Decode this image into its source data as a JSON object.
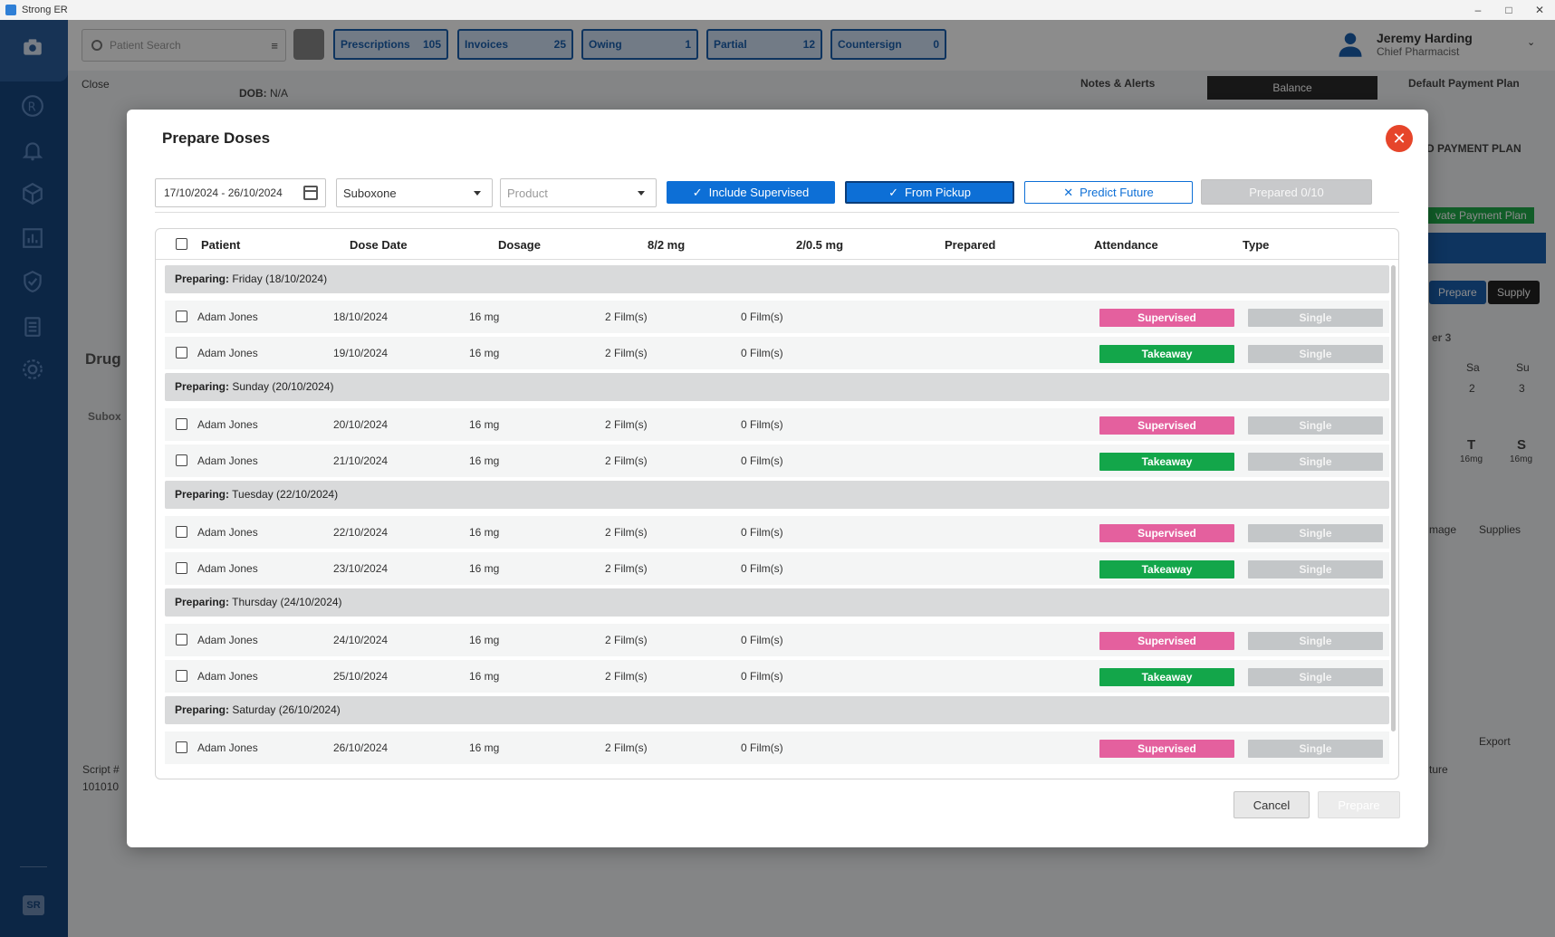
{
  "window": {
    "title": "Strong ER"
  },
  "header": {
    "search_placeholder": "Patient Search",
    "counters": [
      {
        "label": "Prescriptions",
        "count": "105"
      },
      {
        "label": "Invoices",
        "count": "25"
      },
      {
        "label": "Owing",
        "count": "1"
      },
      {
        "label": "Partial",
        "count": "12"
      },
      {
        "label": "Countersign",
        "count": "0"
      }
    ],
    "user": {
      "name": "Jeremy Harding",
      "role": "Chief Pharmacist"
    }
  },
  "background": {
    "close_label": "Close",
    "dob_label": "DOB:",
    "dob_value": "N/A",
    "notes_alerts": "Notes & Alerts",
    "balance": "Balance",
    "default_payment_plan": "Default Payment Plan",
    "payment_plan_fragment": "D PAYMENT PLAN",
    "private_payment_plan_fragment": "vate Payment Plan",
    "drug_fragment": "Drug",
    "subox_fragment": "Subox",
    "prepare_fragment": "Prepare",
    "supply": "Supply",
    "week_fragment": "er 3",
    "day_sa": "Sa",
    "day_su": "Su",
    "date_2": "2",
    "date_3": "3",
    "t_letter": "T",
    "s_letter": "S",
    "dose_16mg": "16mg",
    "image_fragment": "mage",
    "supplies": "Supplies",
    "export": "Export",
    "script_label": "Script #",
    "script_value": "101010",
    "future_fragment": "ture"
  },
  "modal": {
    "title": "Prepare Doses",
    "filters": {
      "date_range": "17/10/2024 - 26/10/2024",
      "drug": "Suboxone",
      "product_placeholder": "Product",
      "include_supervised": "Include Supervised",
      "from_pickup": "From Pickup",
      "predict_future": "Predict Future",
      "prepared": "Prepared 0/10"
    },
    "columns": [
      "Patient",
      "Dose Date",
      "Dosage",
      "8/2 mg",
      "2/0.5 mg",
      "Prepared",
      "Attendance",
      "Type"
    ],
    "groups": [
      {
        "prefix": "Preparing:",
        "label": "Friday (18/10/2024)",
        "rows": [
          {
            "patient": "Adam Jones",
            "date": "18/10/2024",
            "dosage": "16 mg",
            "a": "2 Film(s)",
            "b": "0 Film(s)",
            "attendance": "Supervised",
            "type": "Single"
          },
          {
            "patient": "Adam Jones",
            "date": "19/10/2024",
            "dosage": "16 mg",
            "a": "2 Film(s)",
            "b": "0 Film(s)",
            "attendance": "Takeaway",
            "type": "Single"
          }
        ]
      },
      {
        "prefix": "Preparing:",
        "label": "Sunday (20/10/2024)",
        "rows": [
          {
            "patient": "Adam Jones",
            "date": "20/10/2024",
            "dosage": "16 mg",
            "a": "2 Film(s)",
            "b": "0 Film(s)",
            "attendance": "Supervised",
            "type": "Single"
          },
          {
            "patient": "Adam Jones",
            "date": "21/10/2024",
            "dosage": "16 mg",
            "a": "2 Film(s)",
            "b": "0 Film(s)",
            "attendance": "Takeaway",
            "type": "Single"
          }
        ]
      },
      {
        "prefix": "Preparing:",
        "label": "Tuesday (22/10/2024)",
        "rows": [
          {
            "patient": "Adam Jones",
            "date": "22/10/2024",
            "dosage": "16 mg",
            "a": "2 Film(s)",
            "b": "0 Film(s)",
            "attendance": "Supervised",
            "type": "Single"
          },
          {
            "patient": "Adam Jones",
            "date": "23/10/2024",
            "dosage": "16 mg",
            "a": "2 Film(s)",
            "b": "0 Film(s)",
            "attendance": "Takeaway",
            "type": "Single"
          }
        ]
      },
      {
        "prefix": "Preparing:",
        "label": "Thursday (24/10/2024)",
        "rows": [
          {
            "patient": "Adam Jones",
            "date": "24/10/2024",
            "dosage": "16 mg",
            "a": "2 Film(s)",
            "b": "0 Film(s)",
            "attendance": "Supervised",
            "type": "Single"
          },
          {
            "patient": "Adam Jones",
            "date": "25/10/2024",
            "dosage": "16 mg",
            "a": "2 Film(s)",
            "b": "0 Film(s)",
            "attendance": "Takeaway",
            "type": "Single"
          }
        ]
      },
      {
        "prefix": "Preparing:",
        "label": "Saturday (26/10/2024)",
        "rows": [
          {
            "patient": "Adam Jones",
            "date": "26/10/2024",
            "dosage": "16 mg",
            "a": "2 Film(s)",
            "b": "0 Film(s)",
            "attendance": "Supervised",
            "type": "Single"
          }
        ]
      }
    ],
    "cancel": "Cancel",
    "prepare": "Prepare"
  },
  "colors": {
    "sidebar": "#17467f",
    "primary": "#0d6fd6",
    "supervised": "#e4609e",
    "takeaway": "#13a64a",
    "close": "#e6452a"
  },
  "icons": [
    "camera-icon",
    "rx-icon",
    "bell-icon",
    "box-icon",
    "chart-icon",
    "shield-check-icon",
    "clipboard-icon",
    "gear-icon"
  ]
}
